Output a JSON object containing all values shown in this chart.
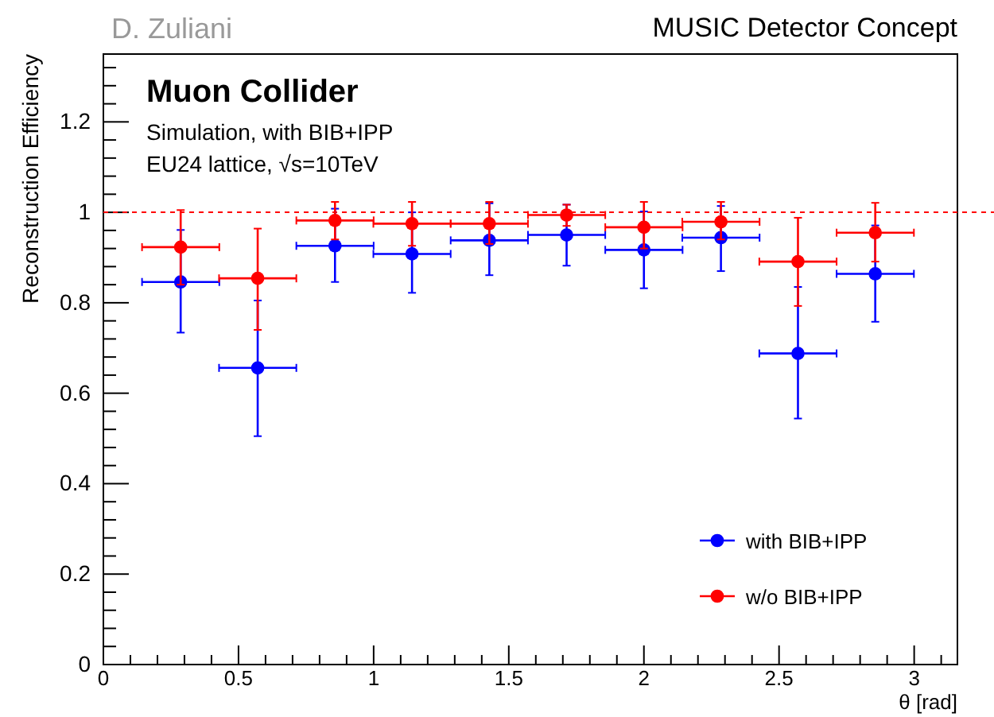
{
  "chart_data": {
    "type": "scatter",
    "title": "MUSIC Detector Concept",
    "xlabel": "θ [rad]",
    "ylabel": "Reconstruction Efficiency",
    "annotations": [
      "D. Zuliani",
      "Muon Collider",
      "Simulation, with BIB+IPP",
      "EU24 lattice, √s=10TeV"
    ],
    "x": [
      0.286,
      0.571,
      0.857,
      1.142,
      1.428,
      1.714,
      2.0,
      2.285,
      2.57,
      2.856
    ],
    "series": [
      {
        "name": "with BIB+IPP",
        "color": "#0000ff",
        "xerrors": [
          0.143,
          0.143,
          0.143,
          0.143,
          0.143,
          0.143,
          0.143,
          0.143,
          0.143,
          0.143
        ],
        "values": [
          0.846,
          0.656,
          0.926,
          0.908,
          0.938,
          0.95,
          0.917,
          0.944,
          0.688,
          0.864
        ],
        "errors": [
          [
            0.734,
            0.961
          ],
          [
            0.505,
            0.805
          ],
          [
            0.846,
            1.008
          ],
          [
            0.822,
            1.0
          ],
          [
            0.861,
            1.02
          ],
          [
            0.882,
            1.017
          ],
          [
            0.832,
            1.002
          ],
          [
            0.87,
            1.014
          ],
          [
            0.544,
            0.835
          ],
          [
            0.758,
            0.971
          ]
        ]
      },
      {
        "name": "w/o BIB+IPP",
        "color": "#ff0000",
        "xerrors": [
          0.143,
          0.143,
          0.143,
          0.143,
          0.143,
          0.143,
          0.143,
          0.143,
          0.143,
          0.143
        ],
        "values": [
          0.923,
          0.854,
          0.982,
          0.975,
          0.975,
          0.994,
          0.967,
          0.979,
          0.891,
          0.955
        ],
        "errors": [
          [
            0.84,
            1.005
          ],
          [
            0.74,
            0.964
          ],
          [
            0.94,
            1.023
          ],
          [
            0.926,
            1.023
          ],
          [
            0.93,
            1.023
          ],
          [
            0.97,
            1.017
          ],
          [
            0.92,
            1.023
          ],
          [
            0.94,
            1.023
          ],
          [
            0.793,
            0.988
          ],
          [
            0.891,
            1.021
          ]
        ]
      }
    ],
    "xlim": [
      0,
      3.16
    ],
    "ylim": [
      0,
      1.35
    ],
    "xticks": [
      0,
      0.5,
      1,
      1.5,
      2,
      2.5,
      3
    ],
    "yticks": [
      0,
      0.2,
      0.4,
      0.6,
      0.8,
      1,
      1.2
    ],
    "ref_lines": [
      {
        "axis": "y",
        "value": 1,
        "color": "#ff0000",
        "line_style": "dotted"
      }
    ],
    "marker": "circle",
    "legend": "bottom right",
    "grid": false
  }
}
